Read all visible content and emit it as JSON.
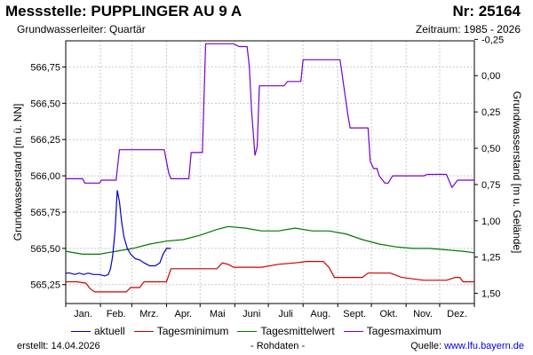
{
  "header": {
    "title": "Messstelle: PUPPLINGER AU 9 A",
    "number": "Nr: 25164",
    "aquifer": "Grundwasserleiter: Quartär",
    "period": "Zeitraum: 1985 - 2026"
  },
  "footer": {
    "created": "erstellt:  14.04.2026",
    "raw": "- Rohdaten -",
    "source_label": "Quelle: ",
    "source_link": "www.lfu.bayern.de"
  },
  "colors": {
    "aktuell": "#0000cc",
    "min": "#cc0000",
    "mittel": "#007700",
    "max": "#7700cc",
    "grid": "#c8c8c8"
  },
  "chart_data": {
    "type": "line",
    "ylabel": "Grundwasserstand [m ü. NN]",
    "y2label": "Grundwasserstand [m u. Gelände]",
    "ylim": [
      565.12,
      566.93
    ],
    "y2lim": [
      1.57,
      -0.24
    ],
    "yticks": [
      "565,25",
      "565,50",
      "565,75",
      "566,00",
      "566,25",
      "566,50",
      "566,75"
    ],
    "yticks_values": [
      565.25,
      565.5,
      565.75,
      566.0,
      566.25,
      566.5,
      566.75
    ],
    "y2ticks": [
      "-0,25",
      "0,00",
      "0,25",
      "0,50",
      "0,75",
      "1,00",
      "1,25",
      "1,50"
    ],
    "y2ticks_values": [
      -0.25,
      0.0,
      0.25,
      0.5,
      0.75,
      1.0,
      1.25,
      1.5
    ],
    "xlim": [
      0,
      365
    ],
    "xlabel": "",
    "month_labels": [
      "Jan.",
      "Feb.",
      "Mrz.",
      "Apr.",
      "Mai",
      "Juni",
      "Juli",
      "Aug.",
      "Sept.",
      "Okt.",
      "Nov.",
      "Dez."
    ],
    "grid": true,
    "legend_position": "bottom",
    "series": [
      {
        "name": "aktuell",
        "color": "aktuell",
        "x": [
          0,
          4,
          8,
          12,
          16,
          20,
          25,
          30,
          35,
          38,
          40,
          42,
          44,
          46,
          48,
          50,
          52,
          55,
          58,
          62,
          66,
          70,
          75,
          80,
          84,
          87,
          90,
          94
        ],
        "values": [
          565.33,
          565.33,
          565.32,
          565.33,
          565.32,
          565.33,
          565.32,
          565.32,
          565.31,
          565.32,
          565.36,
          565.45,
          565.62,
          565.9,
          565.82,
          565.68,
          565.58,
          565.5,
          565.46,
          565.43,
          565.42,
          565.4,
          565.38,
          565.38,
          565.4,
          565.46,
          565.5,
          565.5
        ]
      },
      {
        "name": "Tagesminimum",
        "color": "min",
        "x": [
          0,
          10,
          18,
          22,
          26,
          40,
          54,
          58,
          62,
          66,
          70,
          80,
          90,
          94,
          98,
          110,
          135,
          140,
          145,
          150,
          165,
          175,
          190,
          205,
          215,
          225,
          230,
          235,
          240,
          250,
          260,
          265,
          270,
          290,
          300,
          320,
          330,
          340,
          348,
          352,
          355,
          365
        ],
        "values": [
          565.27,
          565.27,
          565.26,
          565.22,
          565.2,
          565.2,
          565.2,
          565.23,
          565.23,
          565.23,
          565.27,
          565.27,
          565.27,
          565.36,
          565.36,
          565.36,
          565.36,
          565.4,
          565.39,
          565.37,
          565.37,
          565.37,
          565.39,
          565.4,
          565.41,
          565.41,
          565.41,
          565.37,
          565.3,
          565.3,
          565.3,
          565.3,
          565.33,
          565.33,
          565.3,
          565.28,
          565.28,
          565.28,
          565.3,
          565.3,
          565.27,
          565.27
        ]
      },
      {
        "name": "Tagesmittelwert",
        "color": "mittel",
        "x": [
          0,
          15,
          30,
          45,
          60,
          75,
          90,
          105,
          120,
          135,
          145,
          160,
          175,
          190,
          205,
          220,
          235,
          250,
          265,
          280,
          295,
          310,
          325,
          340,
          355,
          365
        ],
        "values": [
          565.48,
          565.46,
          565.46,
          565.48,
          565.5,
          565.53,
          565.55,
          565.56,
          565.59,
          565.63,
          565.65,
          565.64,
          565.62,
          565.62,
          565.64,
          565.62,
          565.62,
          565.6,
          565.56,
          565.53,
          565.51,
          565.5,
          565.5,
          565.49,
          565.48,
          565.47
        ]
      },
      {
        "name": "Tagesmaximum",
        "color": "max",
        "x": [
          0,
          15,
          17,
          30,
          32,
          45,
          48,
          52,
          56,
          60,
          64,
          68,
          72,
          76,
          82,
          88,
          92,
          94,
          97,
          110,
          112,
          114,
          122,
          125,
          128,
          135,
          137,
          145,
          150,
          155,
          160,
          162,
          164,
          166,
          169,
          171,
          173,
          175,
          195,
          198,
          210,
          212,
          220,
          225,
          240,
          245,
          252,
          254,
          270,
          272,
          275,
          278,
          280,
          285,
          288,
          292,
          320,
          323,
          330,
          333,
          336,
          340,
          345,
          350,
          365
        ],
        "values": [
          565.98,
          565.98,
          565.95,
          565.95,
          565.97,
          565.97,
          566.18,
          566.18,
          566.18,
          566.18,
          566.18,
          566.18,
          566.18,
          566.18,
          566.18,
          566.18,
          566.02,
          565.98,
          565.98,
          565.98,
          566.16,
          566.16,
          566.16,
          566.91,
          566.91,
          566.91,
          566.91,
          566.91,
          566.91,
          566.89,
          566.89,
          566.89,
          566.75,
          566.45,
          566.14,
          566.2,
          566.62,
          566.62,
          566.62,
          566.65,
          566.65,
          566.8,
          566.8,
          566.8,
          566.8,
          566.8,
          566.42,
          566.33,
          566.33,
          566.1,
          566.05,
          566.05,
          566.0,
          565.95,
          565.95,
          566.0,
          566.0,
          566.01,
          566.01,
          566.01,
          566.01,
          566.01,
          565.92,
          565.97,
          565.97
        ]
      }
    ]
  }
}
